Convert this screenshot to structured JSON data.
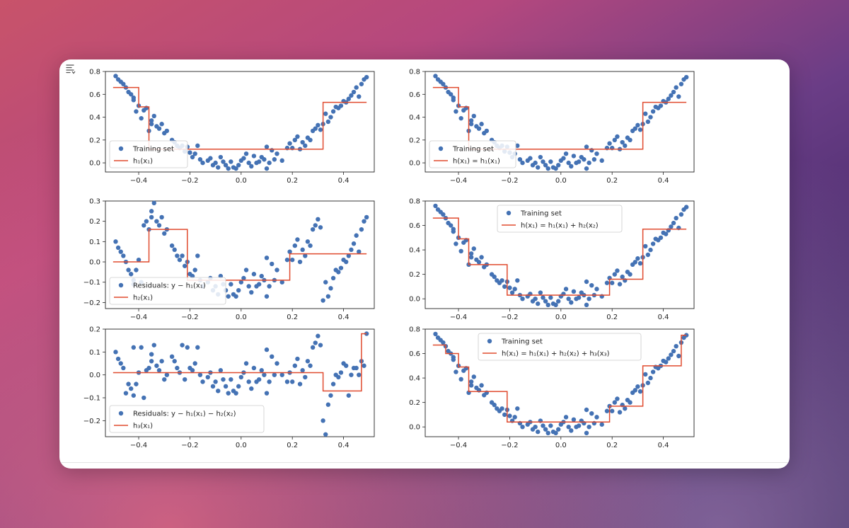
{
  "colors": {
    "scatter": "#4472b4",
    "line": "#e04b2f",
    "axes": "#222222",
    "legend_border": "#cccccc"
  },
  "icons": {
    "cell_output_toggle": "output-toggle-icon"
  },
  "chart_data": [
    {
      "id": "h1",
      "type": "scatter",
      "xlim": [
        -0.53,
        0.52
      ],
      "ylim": [
        -0.08,
        0.8
      ],
      "xticks": [
        -0.4,
        -0.2,
        0.0,
        0.2,
        0.4
      ],
      "xtick_labels": [
        "−0.4",
        "−0.2",
        "0.0",
        "0.2",
        "0.4"
      ],
      "yticks": [
        0.0,
        0.2,
        0.4,
        0.6,
        0.8
      ],
      "ytick_labels": [
        "0.0",
        "0.2",
        "0.4",
        "0.6",
        "0.8"
      ],
      "legend_placement": "lower-left",
      "points": "training",
      "step": {
        "breaks": [
          -0.5,
          -0.4,
          -0.36,
          0.32,
          0.49
        ],
        "values": [
          0.66,
          0.49,
          0.12,
          0.53
        ]
      },
      "legend": [
        {
          "kind": "marker",
          "label": "Training set"
        },
        {
          "kind": "line",
          "label": "h₁(x₁)"
        }
      ]
    },
    {
      "id": "h1sum",
      "type": "scatter",
      "xlim": [
        -0.53,
        0.52
      ],
      "ylim": [
        -0.08,
        0.8
      ],
      "xticks": [
        -0.4,
        -0.2,
        0.0,
        0.2,
        0.4
      ],
      "xtick_labels": [
        "−0.4",
        "−0.2",
        "0.0",
        "0.2",
        "0.4"
      ],
      "yticks": [
        0.0,
        0.2,
        0.4,
        0.6,
        0.8
      ],
      "ytick_labels": [
        "0.0",
        "0.2",
        "0.4",
        "0.6",
        "0.8"
      ],
      "legend_placement": "lower-left",
      "points": "training",
      "step": {
        "breaks": [
          -0.5,
          -0.4,
          -0.36,
          0.32,
          0.49
        ],
        "values": [
          0.66,
          0.49,
          0.12,
          0.53
        ]
      },
      "legend": [
        {
          "kind": "marker",
          "label": "Training set"
        },
        {
          "kind": "line",
          "label": "h(x₁) = h₁(x₁)"
        }
      ]
    },
    {
      "id": "h2",
      "type": "scatter",
      "xlim": [
        -0.53,
        0.52
      ],
      "ylim": [
        -0.23,
        0.3
      ],
      "xticks": [
        -0.4,
        -0.2,
        0.0,
        0.2,
        0.4
      ],
      "xtick_labels": [
        "−0.4",
        "−0.2",
        "0.0",
        "0.2",
        "0.4"
      ],
      "yticks": [
        -0.2,
        -0.1,
        0.0,
        0.1,
        0.2,
        0.3
      ],
      "ytick_labels": [
        "−0.2",
        "−0.1",
        "0.0",
        "0.1",
        "0.2",
        "0.3"
      ],
      "legend_placement": "lower-left",
      "points": "residual1",
      "step": {
        "breaks": [
          -0.5,
          -0.36,
          -0.21,
          0.19,
          0.49
        ],
        "values": [
          0.0,
          0.16,
          -0.09,
          0.04
        ]
      },
      "legend": [
        {
          "kind": "marker",
          "label": "Residuals: y − h₁(x₁)"
        },
        {
          "kind": "line",
          "label": "h₂(x₁)"
        }
      ]
    },
    {
      "id": "h12sum",
      "type": "scatter",
      "xlim": [
        -0.53,
        0.52
      ],
      "ylim": [
        -0.08,
        0.8
      ],
      "xticks": [
        -0.4,
        -0.2,
        0.0,
        0.2,
        0.4
      ],
      "xtick_labels": [
        "−0.4",
        "−0.2",
        "0.0",
        "0.2",
        "0.4"
      ],
      "yticks": [
        0.0,
        0.2,
        0.4,
        0.6,
        0.8
      ],
      "ytick_labels": [
        "0.0",
        "0.2",
        "0.4",
        "0.6",
        "0.8"
      ],
      "legend_placement": "upper-center",
      "points": "training",
      "step": {
        "breaks": [
          -0.5,
          -0.4,
          -0.36,
          -0.21,
          0.19,
          0.32,
          0.49
        ],
        "values": [
          0.66,
          0.49,
          0.28,
          0.03,
          0.16,
          0.57
        ]
      },
      "legend": [
        {
          "kind": "marker",
          "label": "Training set"
        },
        {
          "kind": "line",
          "label": "h(x₁) = h₁(x₁) + h₂(x₂)"
        }
      ]
    },
    {
      "id": "h3",
      "type": "scatter",
      "xlim": [
        -0.53,
        0.52
      ],
      "ylim": [
        -0.27,
        0.2
      ],
      "xticks": [
        -0.4,
        -0.2,
        0.0,
        0.2,
        0.4
      ],
      "xtick_labels": [
        "−0.4",
        "−0.2",
        "0.0",
        "0.2",
        "0.4"
      ],
      "yticks": [
        -0.2,
        -0.1,
        0.0,
        0.1,
        0.2
      ],
      "ytick_labels": [
        "−0.2",
        "−0.1",
        "0.0",
        "0.1",
        "0.2"
      ],
      "legend_placement": "lower-left",
      "points": "residual2",
      "step": {
        "breaks": [
          -0.5,
          0.32,
          0.47,
          0.49
        ],
        "values": [
          0.01,
          -0.07,
          0.18
        ]
      },
      "legend": [
        {
          "kind": "marker",
          "label": "Residuals: y − h₁(x₁) − h₂(x₂)"
        },
        {
          "kind": "line",
          "label": "h₃(x₁)"
        }
      ]
    },
    {
      "id": "h123sum",
      "type": "scatter",
      "xlim": [
        -0.53,
        0.52
      ],
      "ylim": [
        -0.08,
        0.8
      ],
      "xticks": [
        -0.4,
        -0.2,
        0.0,
        0.2,
        0.4
      ],
      "xtick_labels": [
        "−0.4",
        "−0.2",
        "0.0",
        "0.2",
        "0.4"
      ],
      "yticks": [
        0.0,
        0.2,
        0.4,
        0.6,
        0.8
      ],
      "ytick_labels": [
        "0.0",
        "0.2",
        "0.4",
        "0.6",
        "0.8"
      ],
      "legend_placement": "upper-center",
      "points": "training",
      "step": {
        "breaks": [
          -0.5,
          -0.45,
          -0.4,
          -0.36,
          -0.21,
          0.19,
          0.32,
          0.47,
          0.49
        ],
        "values": [
          0.67,
          0.6,
          0.49,
          0.29,
          0.04,
          0.17,
          0.5,
          0.75
        ]
      },
      "legend": [
        {
          "kind": "marker",
          "label": "Training set"
        },
        {
          "kind": "line",
          "label": "h(x₁) = h₁(x₁) + h₂(x₂) + h₃(x₃)"
        }
      ]
    }
  ],
  "datasets": {
    "training": {
      "x": [
        -0.49,
        -0.48,
        -0.47,
        -0.46,
        -0.45,
        -0.44,
        -0.43,
        -0.42,
        -0.42,
        -0.41,
        -0.4,
        -0.39,
        -0.38,
        -0.37,
        -0.36,
        -0.35,
        -0.35,
        -0.34,
        -0.33,
        -0.32,
        -0.31,
        -0.3,
        -0.29,
        -0.27,
        -0.26,
        -0.25,
        -0.24,
        -0.23,
        -0.22,
        -0.21,
        -0.2,
        -0.19,
        -0.18,
        -0.17,
        -0.16,
        -0.15,
        -0.13,
        -0.12,
        -0.11,
        -0.1,
        -0.09,
        -0.08,
        -0.07,
        -0.06,
        -0.05,
        -0.04,
        -0.03,
        -0.02,
        -0.01,
        0.0,
        0.01,
        0.02,
        0.03,
        0.04,
        0.05,
        0.06,
        0.07,
        0.08,
        0.09,
        0.1,
        0.1,
        0.11,
        0.12,
        0.13,
        0.14,
        0.16,
        0.18,
        0.19,
        0.2,
        0.21,
        0.22,
        0.23,
        0.24,
        0.25,
        0.26,
        0.27,
        0.28,
        0.29,
        0.3,
        0.31,
        0.32,
        0.33,
        0.34,
        0.35,
        0.36,
        0.37,
        0.38,
        0.39,
        0.4,
        0.41,
        0.42,
        0.43,
        0.44,
        0.45,
        0.46,
        0.47,
        0.48,
        0.49
      ],
      "y": [
        0.76,
        0.73,
        0.71,
        0.69,
        0.66,
        0.62,
        0.6,
        0.55,
        0.57,
        0.45,
        0.5,
        0.39,
        0.46,
        0.48,
        0.28,
        0.37,
        0.34,
        0.41,
        0.32,
        0.3,
        0.34,
        0.26,
        0.28,
        0.2,
        0.18,
        0.15,
        0.13,
        0.15,
        0.1,
        0.14,
        0.09,
        0.05,
        0.08,
        0.15,
        0.03,
        0.0,
        0.02,
        0.04,
        -0.02,
        0.0,
        -0.04,
        0.05,
        0.01,
        -0.02,
        -0.05,
        0.01,
        -0.04,
        -0.05,
        -0.02,
        0.02,
        0.04,
        0.08,
        0.0,
        -0.03,
        0.06,
        0.0,
        0.01,
        0.05,
        0.03,
        -0.05,
        0.14,
        0.0,
        0.11,
        0.03,
        0.08,
        0.02,
        0.13,
        0.17,
        0.13,
        0.2,
        0.23,
        0.12,
        0.18,
        0.15,
        0.22,
        0.2,
        0.28,
        0.3,
        0.33,
        0.29,
        0.34,
        0.43,
        0.36,
        0.4,
        0.45,
        0.49,
        0.48,
        0.5,
        0.54,
        0.53,
        0.56,
        0.59,
        0.62,
        0.66,
        0.58,
        0.69,
        0.73,
        0.75
      ]
    },
    "residual1": {
      "x": [
        -0.49,
        -0.48,
        -0.47,
        -0.46,
        -0.45,
        -0.44,
        -0.43,
        -0.42,
        -0.42,
        -0.41,
        -0.4,
        -0.39,
        -0.38,
        -0.37,
        -0.36,
        -0.35,
        -0.35,
        -0.34,
        -0.33,
        -0.32,
        -0.31,
        -0.3,
        -0.29,
        -0.27,
        -0.26,
        -0.25,
        -0.24,
        -0.23,
        -0.22,
        -0.21,
        -0.2,
        -0.19,
        -0.18,
        -0.17,
        -0.16,
        -0.15,
        -0.13,
        -0.12,
        -0.11,
        -0.1,
        -0.09,
        -0.08,
        -0.07,
        -0.06,
        -0.05,
        -0.04,
        -0.03,
        -0.02,
        -0.01,
        0.0,
        0.01,
        0.02,
        0.03,
        0.04,
        0.05,
        0.06,
        0.07,
        0.08,
        0.09,
        0.1,
        0.1,
        0.11,
        0.12,
        0.13,
        0.14,
        0.16,
        0.18,
        0.19,
        0.2,
        0.21,
        0.22,
        0.23,
        0.24,
        0.25,
        0.26,
        0.27,
        0.28,
        0.29,
        0.3,
        0.31,
        0.32,
        0.33,
        0.34,
        0.35,
        0.36,
        0.37,
        0.38,
        0.39,
        0.4,
        0.41,
        0.42,
        0.43,
        0.44,
        0.45,
        0.46,
        0.47,
        0.48,
        0.49
      ],
      "y": [
        0.1,
        0.07,
        0.05,
        0.03,
        0.0,
        -0.04,
        -0.06,
        -0.11,
        -0.09,
        -0.04,
        0.01,
        -0.1,
        0.18,
        0.2,
        0.16,
        0.25,
        0.22,
        0.29,
        0.2,
        0.18,
        0.22,
        0.14,
        0.16,
        0.08,
        0.06,
        0.03,
        0.01,
        0.03,
        -0.02,
        0.0,
        -0.06,
        -0.07,
        -0.04,
        0.03,
        -0.09,
        -0.12,
        -0.1,
        -0.08,
        -0.14,
        -0.12,
        -0.16,
        -0.07,
        -0.11,
        -0.14,
        -0.17,
        -0.11,
        -0.16,
        -0.17,
        -0.14,
        -0.1,
        -0.08,
        -0.04,
        -0.12,
        -0.15,
        -0.06,
        -0.12,
        -0.11,
        -0.07,
        -0.09,
        -0.17,
        0.02,
        -0.12,
        -0.01,
        -0.09,
        -0.04,
        -0.1,
        0.01,
        0.05,
        0.01,
        0.08,
        0.11,
        0.0,
        0.06,
        0.03,
        0.1,
        0.08,
        0.16,
        0.18,
        0.21,
        0.17,
        -0.19,
        -0.1,
        -0.17,
        -0.13,
        -0.08,
        -0.04,
        -0.05,
        -0.03,
        0.01,
        0.0,
        0.03,
        0.06,
        0.09,
        0.13,
        0.05,
        0.16,
        0.2,
        0.22
      ]
    },
    "residual2": {
      "x": [
        -0.49,
        -0.48,
        -0.47,
        -0.46,
        -0.45,
        -0.44,
        -0.43,
        -0.42,
        -0.42,
        -0.41,
        -0.4,
        -0.39,
        -0.38,
        -0.37,
        -0.36,
        -0.35,
        -0.35,
        -0.34,
        -0.33,
        -0.32,
        -0.31,
        -0.3,
        -0.29,
        -0.27,
        -0.26,
        -0.25,
        -0.24,
        -0.23,
        -0.22,
        -0.21,
        -0.2,
        -0.19,
        -0.18,
        -0.17,
        -0.16,
        -0.15,
        -0.13,
        -0.12,
        -0.11,
        -0.1,
        -0.09,
        -0.08,
        -0.07,
        -0.06,
        -0.05,
        -0.04,
        -0.03,
        -0.02,
        -0.01,
        0.0,
        0.01,
        0.02,
        0.03,
        0.04,
        0.05,
        0.06,
        0.07,
        0.08,
        0.09,
        0.1,
        0.1,
        0.11,
        0.12,
        0.13,
        0.14,
        0.16,
        0.18,
        0.19,
        0.2,
        0.21,
        0.22,
        0.23,
        0.24,
        0.25,
        0.26,
        0.27,
        0.28,
        0.29,
        0.3,
        0.31,
        0.32,
        0.33,
        0.34,
        0.35,
        0.36,
        0.37,
        0.38,
        0.39,
        0.4,
        0.41,
        0.42,
        0.43,
        0.44,
        0.45,
        0.46,
        0.47,
        0.48,
        0.49
      ],
      "y": [
        0.1,
        0.07,
        0.05,
        0.03,
        -0.08,
        -0.04,
        -0.06,
        0.12,
        -0.09,
        -0.04,
        0.01,
        0.12,
        -0.1,
        0.02,
        0.03,
        0.09,
        0.06,
        0.13,
        0.04,
        0.02,
        0.06,
        -0.02,
        0.0,
        0.08,
        0.06,
        0.03,
        0.01,
        0.13,
        -0.02,
        0.12,
        0.03,
        0.02,
        0.05,
        0.12,
        0.0,
        -0.03,
        -0.01,
        0.01,
        -0.05,
        -0.03,
        -0.07,
        0.02,
        -0.02,
        -0.05,
        -0.08,
        -0.02,
        -0.07,
        -0.08,
        -0.05,
        -0.01,
        0.01,
        0.05,
        -0.03,
        -0.06,
        0.03,
        -0.03,
        -0.02,
        0.02,
        0.0,
        -0.08,
        0.11,
        -0.03,
        0.08,
        0.0,
        0.05,
        0.0,
        -0.03,
        0.01,
        -0.03,
        0.04,
        0.07,
        -0.04,
        0.02,
        -0.01,
        0.06,
        0.04,
        0.12,
        0.14,
        0.17,
        0.13,
        -0.2,
        -0.26,
        -0.13,
        -0.09,
        -0.04,
        0.0,
        -0.01,
        0.01,
        0.05,
        0.04,
        -0.09,
        0.0,
        0.03,
        0.03,
        0.0,
        0.06,
        0.04,
        0.18
      ]
    }
  }
}
